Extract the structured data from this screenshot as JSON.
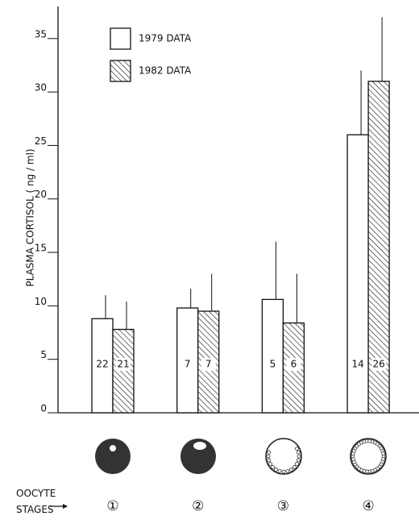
{
  "chart_data": {
    "type": "bar",
    "y_label": "PLASMA CORTISOL ( ng / ml)",
    "x_label": "OOCYTE\nSTAGES",
    "categories": [
      "①",
      "②",
      "③",
      "④"
    ],
    "series": [
      {
        "name": "1979 DATA",
        "color": "#ffffff",
        "pattern": "none",
        "values": [
          8.8,
          9.8,
          10.6,
          26
        ],
        "errors": [
          2.2,
          1.8,
          5.4,
          6
        ],
        "n": [
          22,
          7,
          5,
          14
        ]
      },
      {
        "name": "1982 DATA",
        "color": "#ffffff",
        "pattern": "hatch",
        "values": [
          7.8,
          9.5,
          8.4,
          31
        ],
        "errors": [
          2.6,
          3.5,
          4.6,
          6
        ],
        "n": [
          21,
          7,
          6,
          26
        ]
      }
    ],
    "ylim": [
      0,
      38
    ],
    "yticks": [
      0,
      5,
      10,
      15,
      20,
      25,
      30,
      35
    ],
    "grid": false
  }
}
